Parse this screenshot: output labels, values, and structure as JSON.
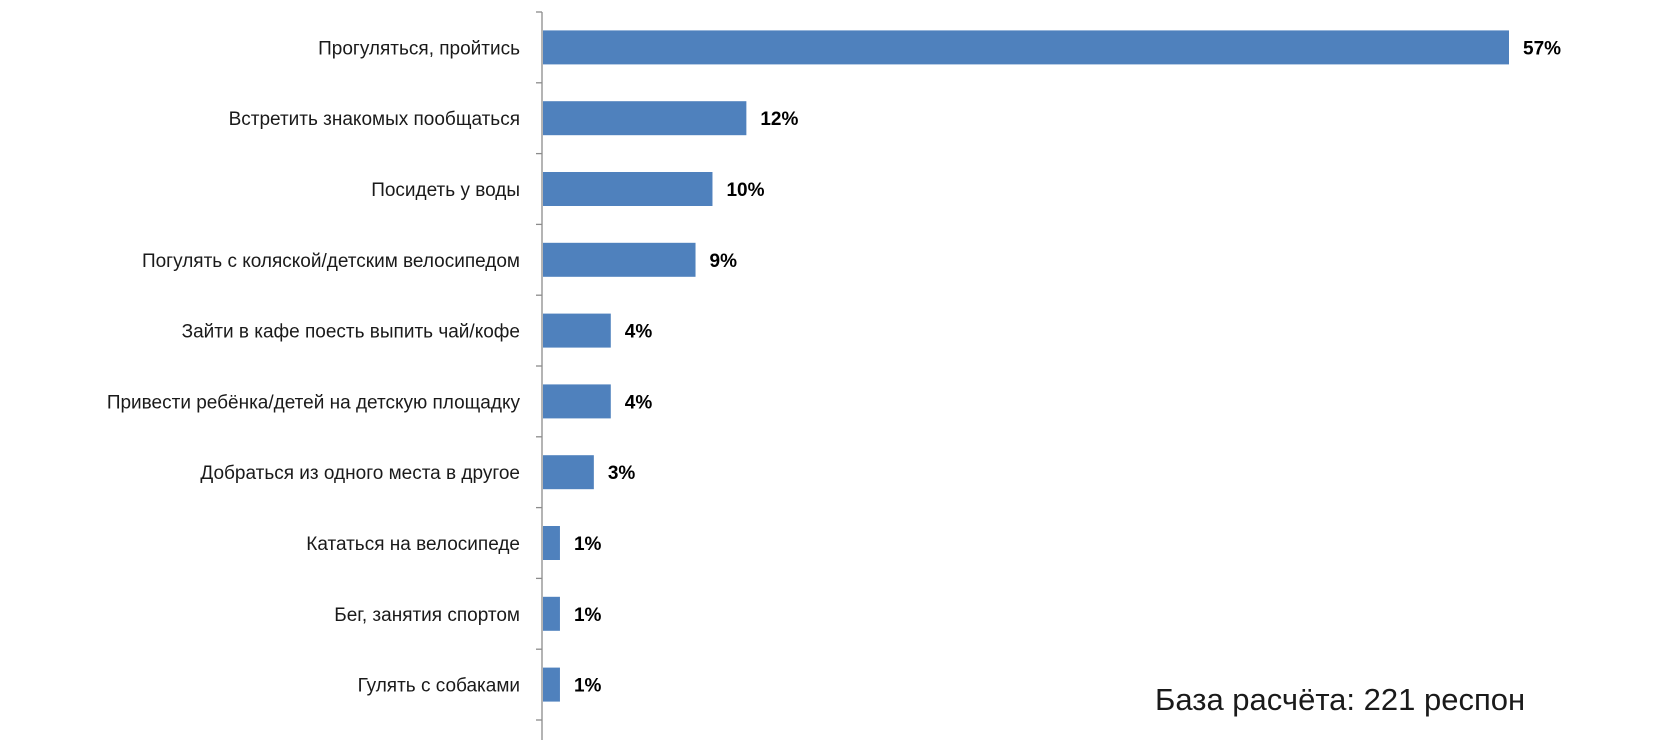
{
  "chart_data": {
    "type": "bar",
    "orientation": "horizontal",
    "categories": [
      "Прогуляться, пройтись",
      "Встретить знакомых пообщаться",
      "Посидеть у воды",
      "Погулять с коляской/детским велосипедом",
      "Зайти в кафе поесть выпить чай/кофе",
      "Привести ребёнка/детей на детскую площадку",
      "Добраться из одного места в другое",
      "Кататься на велосипеде",
      "Бег, занятия спортом",
      "Гулять с собаками"
    ],
    "values": [
      57,
      12,
      10,
      9,
      4,
      4,
      3,
      1,
      1,
      1
    ],
    "value_labels": [
      "57%",
      "12%",
      "10%",
      "9%",
      "4%",
      "4%",
      "3%",
      "1%",
      "1%",
      "1%"
    ],
    "unit": "%",
    "xlim": [
      0,
      57
    ],
    "bar_color": "#4f81bd",
    "grid": false,
    "legend": "none"
  },
  "footnote": "База расчёта: 221 респон"
}
